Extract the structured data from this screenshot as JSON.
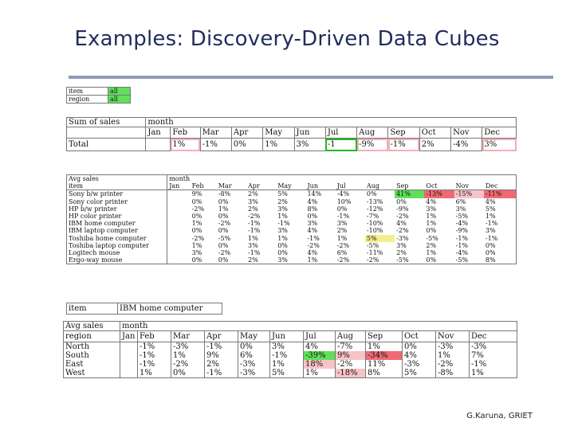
{
  "title": "Examples: Discovery-Driven Data Cubes",
  "footer": "G.Karuna, GRIET",
  "months": [
    "Jan",
    "Feb",
    "Mar",
    "Apr",
    "May",
    "Jun",
    "Jul",
    "Aug",
    "Sep",
    "Oct",
    "Nov",
    "Dec"
  ],
  "filter": {
    "item_label": "item",
    "item_value": "all",
    "region_label": "region",
    "region_value": "all"
  },
  "sum_table": {
    "corner": "Sum of sales",
    "month_label": "month",
    "row_label": "Total",
    "values": [
      "",
      "1%",
      "-1%",
      "0%",
      "1%",
      "3%",
      "-1",
      "-9%",
      "-1%",
      "2%",
      "-4%",
      "3%"
    ]
  },
  "item_table": {
    "corner": "Avg sales",
    "month_label": "month",
    "item_label": "item",
    "rows": [
      {
        "name": "Sony b/w printer",
        "values": [
          "",
          "9%",
          "-8%",
          "2%",
          "5%",
          "14%",
          "-4%",
          "0%",
          "41%",
          "-13%",
          "-15%",
          "-11%"
        ]
      },
      {
        "name": "Sony color printer",
        "values": [
          "",
          "0%",
          "0%",
          "3%",
          "2%",
          "4%",
          "10%",
          "-13%",
          "0%",
          "4%",
          "6%",
          "4%"
        ]
      },
      {
        "name": "HP b/w printer",
        "values": [
          "",
          "-2%",
          "1%",
          "2%",
          "3%",
          "8%",
          "0%",
          "-12%",
          "-9%",
          "3%",
          "3%",
          "5%"
        ]
      },
      {
        "name": "HP color printer",
        "values": [
          "",
          "0%",
          "0%",
          "-2%",
          "1%",
          "0%",
          "-1%",
          "-7%",
          "-2%",
          "1%",
          "-5%",
          "1%"
        ]
      },
      {
        "name": "IBM home computer",
        "values": [
          "",
          "1%",
          "-2%",
          "-1%",
          "-1%",
          "3%",
          "3%",
          "-10%",
          "4%",
          "1%",
          "-4%",
          "-1%"
        ]
      },
      {
        "name": "IBM laptop computer",
        "values": [
          "",
          "0%",
          "0%",
          "-1%",
          "3%",
          "4%",
          "2%",
          "-10%",
          "-2%",
          "0%",
          "-9%",
          "3%"
        ]
      },
      {
        "name": "Toshiba home computer",
        "values": [
          "",
          "-2%",
          "-5%",
          "1%",
          "1%",
          "-1%",
          "1%",
          "5%",
          "-3%",
          "-5%",
          "-1%",
          "-1%"
        ]
      },
      {
        "name": "Toshiba laptop computer",
        "values": [
          "",
          "1%",
          "0%",
          "3%",
          "0%",
          "-2%",
          "-2%",
          "-5%",
          "3%",
          "2%",
          "-1%",
          "0%"
        ]
      },
      {
        "name": "Logitech mouse",
        "values": [
          "",
          "3%",
          "-2%",
          "-1%",
          "0%",
          "4%",
          "6%",
          "-11%",
          "2%",
          "1%",
          "-4%",
          "0%"
        ]
      },
      {
        "name": "Ergo-way mouse",
        "values": [
          "",
          "0%",
          "0%",
          "2%",
          "3%",
          "1%",
          "-2%",
          "-2%",
          "-5%",
          "0%",
          "-5%",
          "8%"
        ]
      }
    ]
  },
  "region_table": {
    "item_label": "item",
    "item_value": "IBM home computer",
    "corner": "Avg sales",
    "month_label": "month",
    "region_label": "region",
    "rows": [
      {
        "name": "North",
        "values": [
          "",
          "-1%",
          "-3%",
          "-1%",
          "0%",
          "3%",
          "4%",
          "-7%",
          "1%",
          "0%",
          "-3%",
          "-3%"
        ]
      },
      {
        "name": "South",
        "values": [
          "",
          "-1%",
          "1%",
          "9%",
          "6%",
          "-1%",
          "-39%",
          "9%",
          "-34%",
          "4%",
          "1%",
          "7%"
        ]
      },
      {
        "name": "East",
        "values": [
          "",
          "-1%",
          "-2%",
          "2%",
          "-3%",
          "1%",
          "18%",
          "-2%",
          "11%",
          "-3%",
          "-2%",
          "-1%"
        ]
      },
      {
        "name": "West",
        "values": [
          "",
          "1%",
          "0%",
          "-1%",
          "-3%",
          "5%",
          "1%",
          "-18%",
          "8%",
          "5%",
          "-8%",
          "1%"
        ]
      }
    ]
  }
}
